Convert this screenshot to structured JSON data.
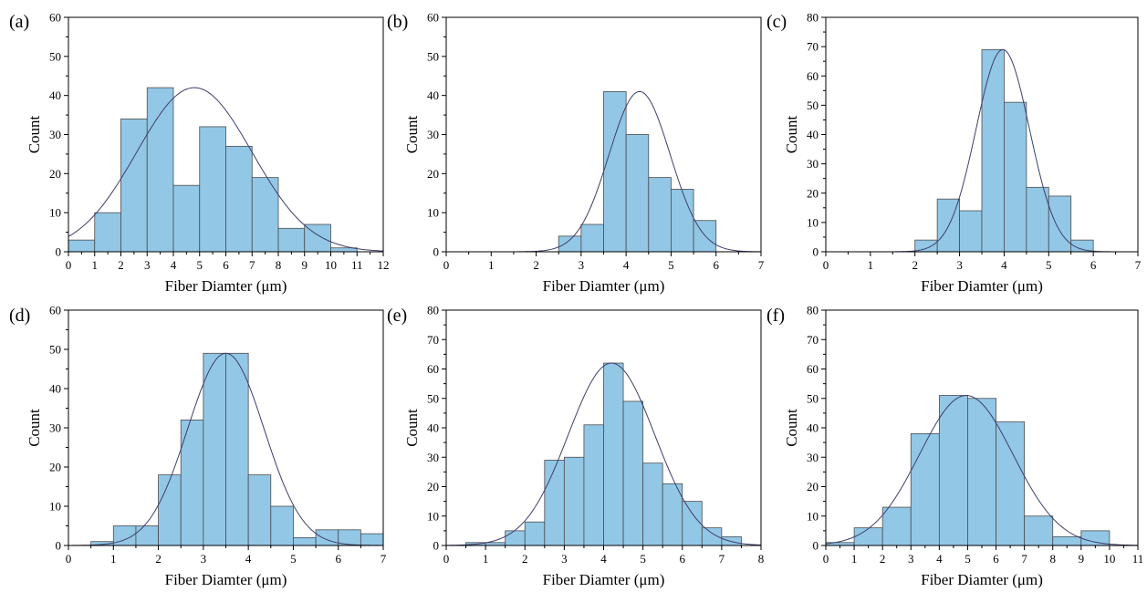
{
  "colors": {
    "bar_fill": "#92c7e6",
    "bar_stroke": "#4d4d4d",
    "fit_line": "#3f3f6b",
    "axis": "#000000"
  },
  "chart_data": [
    {
      "type": "bar",
      "panel_label": "(a)",
      "xlabel": "Fiber Diamter (μm)",
      "ylabel": "Count",
      "xlim": [
        0,
        12
      ],
      "ylim": [
        0,
        60
      ],
      "xticks": [
        0,
        1,
        2,
        3,
        4,
        5,
        6,
        7,
        8,
        9,
        10,
        11,
        12
      ],
      "yticks": [
        0,
        10,
        20,
        30,
        40,
        50,
        60
      ],
      "bins": [
        [
          0,
          1
        ],
        [
          1,
          2
        ],
        [
          2,
          3
        ],
        [
          3,
          4
        ],
        [
          4,
          5
        ],
        [
          5,
          6
        ],
        [
          6,
          7
        ],
        [
          7,
          8
        ],
        [
          8,
          9
        ],
        [
          9,
          10
        ],
        [
          10,
          11
        ]
      ],
      "values": [
        3,
        10,
        34,
        42,
        17,
        32,
        27,
        19,
        6,
        7,
        1
      ],
      "fit": {
        "type": "gaussian",
        "mean": 4.8,
        "sd": 2.2,
        "peak": 42
      }
    },
    {
      "type": "bar",
      "panel_label": "(b)",
      "xlabel": "Fiber Diamter (μm)",
      "ylabel": "Count",
      "xlim": [
        0,
        7
      ],
      "ylim": [
        0,
        60
      ],
      "xticks": [
        0,
        1,
        2,
        3,
        4,
        5,
        6,
        7
      ],
      "yticks": [
        0,
        10,
        20,
        30,
        40,
        50,
        60
      ],
      "bins": [
        [
          2.5,
          3
        ],
        [
          3,
          3.5
        ],
        [
          3.5,
          4
        ],
        [
          4,
          4.5
        ],
        [
          4.5,
          5
        ],
        [
          5,
          5.5
        ],
        [
          5.5,
          6
        ]
      ],
      "values": [
        4,
        7,
        41,
        30,
        19,
        16,
        8
      ],
      "fit": {
        "type": "gaussian",
        "mean": 4.3,
        "sd": 0.68,
        "peak": 41
      }
    },
    {
      "type": "bar",
      "panel_label": "(c)",
      "xlabel": "Fiber Diamter (μm)",
      "ylabel": "Count",
      "xlim": [
        0,
        7
      ],
      "ylim": [
        0,
        80
      ],
      "xticks": [
        0,
        1,
        2,
        3,
        4,
        5,
        6,
        7
      ],
      "yticks": [
        0,
        10,
        20,
        30,
        40,
        50,
        60,
        70,
        80
      ],
      "bins": [
        [
          2,
          2.5
        ],
        [
          2.5,
          3
        ],
        [
          3,
          3.5
        ],
        [
          3.5,
          4
        ],
        [
          4,
          4.5
        ],
        [
          4.5,
          5
        ],
        [
          5,
          5.5
        ],
        [
          5.5,
          6
        ]
      ],
      "values": [
        4,
        18,
        14,
        69,
        51,
        22,
        19,
        4
      ],
      "fit": {
        "type": "gaussian",
        "mean": 3.97,
        "sd": 0.6,
        "peak": 69
      }
    },
    {
      "type": "bar",
      "panel_label": "(d)",
      "xlabel": "Fiber Diamter (μm)",
      "ylabel": "Count",
      "xlim": [
        0,
        7
      ],
      "ylim": [
        0,
        60
      ],
      "xticks": [
        0,
        1,
        2,
        3,
        4,
        5,
        6,
        7
      ],
      "yticks": [
        0,
        10,
        20,
        30,
        40,
        50,
        60
      ],
      "bins": [
        [
          0.5,
          1
        ],
        [
          1,
          1.5
        ],
        [
          1.5,
          2
        ],
        [
          2,
          2.5
        ],
        [
          2.5,
          3
        ],
        [
          3,
          3.5
        ],
        [
          3.5,
          4
        ],
        [
          4,
          4.5
        ],
        [
          4.5,
          5
        ],
        [
          5,
          5.5
        ],
        [
          5.5,
          6
        ],
        [
          6,
          6.5
        ],
        [
          6.5,
          7
        ]
      ],
      "values": [
        1,
        5,
        5,
        18,
        32,
        49,
        49,
        18,
        10,
        2,
        4,
        4,
        3
      ],
      "fit": {
        "type": "gaussian",
        "mean": 3.5,
        "sd": 0.85,
        "peak": 49
      }
    },
    {
      "type": "bar",
      "panel_label": "(e)",
      "xlabel": "Fiber Diamter (μm)",
      "ylabel": "Count",
      "xlim": [
        0,
        8
      ],
      "ylim": [
        0,
        80
      ],
      "xticks": [
        0,
        1,
        2,
        3,
        4,
        5,
        6,
        7,
        8
      ],
      "yticks": [
        0,
        10,
        20,
        30,
        40,
        50,
        60,
        70,
        80
      ],
      "bins": [
        [
          0.5,
          1
        ],
        [
          1,
          1.5
        ],
        [
          1.5,
          2
        ],
        [
          2,
          2.5
        ],
        [
          2.5,
          3
        ],
        [
          3,
          3.5
        ],
        [
          3.5,
          4
        ],
        [
          4,
          4.5
        ],
        [
          4.5,
          5
        ],
        [
          5,
          5.5
        ],
        [
          5.5,
          6
        ],
        [
          6,
          6.5
        ],
        [
          6.5,
          7
        ],
        [
          7,
          7.5
        ]
      ],
      "values": [
        1,
        1,
        5,
        8,
        29,
        30,
        41,
        62,
        49,
        28,
        21,
        15,
        6,
        3
      ],
      "fit": {
        "type": "gaussian",
        "mean": 4.2,
        "sd": 1.1,
        "peak": 62
      }
    },
    {
      "type": "bar",
      "panel_label": "(f)",
      "xlabel": "Fiber Diamter (μm)",
      "ylabel": "Count",
      "xlim": [
        0,
        11
      ],
      "ylim": [
        0,
        80
      ],
      "xticks": [
        0,
        1,
        2,
        3,
        4,
        5,
        6,
        7,
        8,
        9,
        10,
        11
      ],
      "yticks": [
        0,
        10,
        20,
        30,
        40,
        50,
        60,
        70,
        80
      ],
      "bins": [
        [
          0,
          1
        ],
        [
          1,
          2
        ],
        [
          2,
          3
        ],
        [
          3,
          4
        ],
        [
          4,
          5
        ],
        [
          5,
          6
        ],
        [
          6,
          7
        ],
        [
          7,
          8
        ],
        [
          8,
          9
        ],
        [
          9,
          10
        ]
      ],
      "values": [
        1,
        6,
        13,
        38,
        51,
        50,
        42,
        10,
        3,
        5
      ],
      "fit": {
        "type": "gaussian",
        "mean": 4.95,
        "sd": 1.65,
        "peak": 51
      }
    }
  ]
}
